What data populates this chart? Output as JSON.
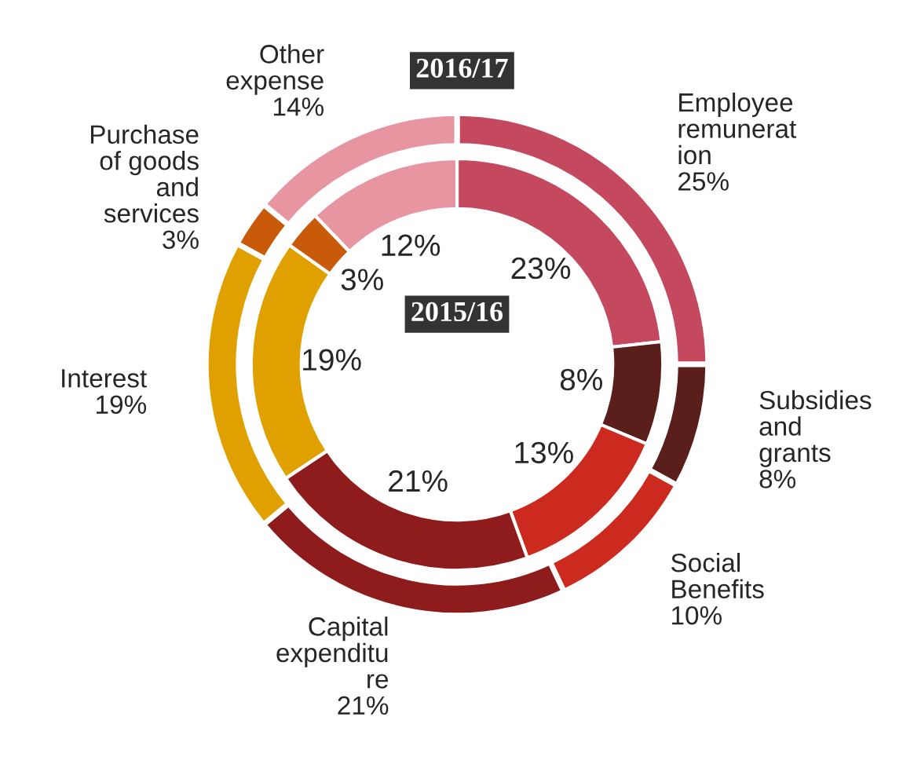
{
  "chart_data": {
    "type": "donut",
    "categories": [
      "Employee\nremunerat\nion",
      "Subsidies\nand\ngrants",
      "Social\nBenefits",
      "Capital\nexpenditu\nre",
      "Interest",
      "Purchase\nof goods\nand\nservices",
      "Other\nexpense"
    ],
    "series": [
      {
        "name": "2016/17",
        "values": [
          25,
          8,
          10,
          21,
          19,
          3,
          14
        ],
        "value_labels": [
          "25%",
          "8%",
          "10%",
          "21%",
          "19%",
          "3%",
          "14%"
        ],
        "colors": [
          "#c4495e",
          "#5a1f1b",
          "#cc2a1e",
          "#8e1c1c",
          "#e0a000",
          "#c85a0a",
          "#e795a0"
        ]
      },
      {
        "name": "2015/16",
        "values": [
          23,
          8,
          13,
          21,
          19,
          3,
          12
        ],
        "value_labels": [
          "23%",
          "8%",
          "13%",
          "21%",
          "19%",
          "3%",
          "12%"
        ],
        "colors": [
          "#c4495e",
          "#5a1f1b",
          "#cc2a1e",
          "#8e1c1c",
          "#e0a000",
          "#c85a0a",
          "#e795a0"
        ]
      }
    ]
  }
}
